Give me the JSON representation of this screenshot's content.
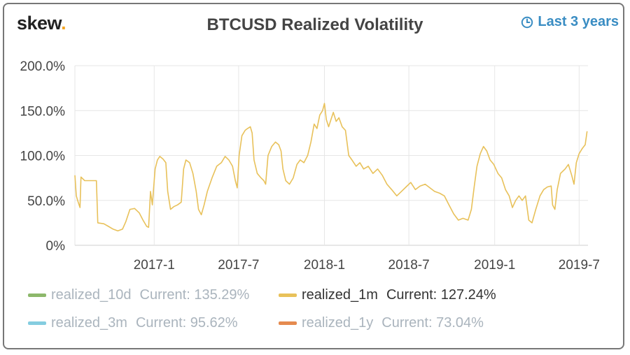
{
  "logo": {
    "text": "skew",
    "dot": "."
  },
  "header": {
    "title": "BTCUSD Realized Volatility",
    "range_label": "Last 3 years",
    "range_icon": "clock-icon"
  },
  "colors": {
    "accent": "#3a8dc3",
    "line": "#e8c15a",
    "grid": "#e6e6e6"
  },
  "legend": [
    {
      "name": "realized_10d",
      "current": "Current: 135.29%",
      "color": "#8db86b",
      "active": false
    },
    {
      "name": "realized_1m",
      "current": "Current: 127.24%",
      "color": "#e8c15a",
      "active": true
    },
    {
      "name": "realized_3m",
      "current": "Current: 95.62%",
      "color": "#84cde0",
      "active": false
    },
    {
      "name": "realized_1y",
      "current": "Current: 73.04%",
      "color": "#e58a4f",
      "active": false
    }
  ],
  "chart_data": {
    "type": "line",
    "title": "BTCUSD Realized Volatility",
    "ylim": [
      0,
      200
    ],
    "y_ticks": [
      0,
      50,
      100,
      150,
      200
    ],
    "y_tick_labels": [
      "0%",
      "50.0%",
      "100.0%",
      "150.0%",
      "200.0%"
    ],
    "x_tick_labels": [
      "2017-1",
      "2017-7",
      "2018-1",
      "2018-7",
      "2019-1",
      "2019-7"
    ],
    "x_tick_dates": [
      "2017-01-01",
      "2017-07-01",
      "2018-01-01",
      "2018-07-01",
      "2019-01-01",
      "2019-07-01"
    ],
    "xlim": [
      "2016-07-15",
      "2019-07-20"
    ],
    "grid": true,
    "legend_position": "bottom",
    "series": [
      {
        "name": "realized_1m",
        "points": [
          [
            "2016-07-15",
            78
          ],
          [
            "2016-07-18",
            55
          ],
          [
            "2016-07-22",
            48
          ],
          [
            "2016-07-26",
            42
          ],
          [
            "2016-07-28",
            76
          ],
          [
            "2016-08-05",
            72
          ],
          [
            "2016-08-20",
            72
          ],
          [
            "2016-08-30",
            72
          ],
          [
            "2016-09-02",
            25
          ],
          [
            "2016-09-15",
            24
          ],
          [
            "2016-09-25",
            21
          ],
          [
            "2016-10-05",
            18
          ],
          [
            "2016-10-15",
            16
          ],
          [
            "2016-10-25",
            18
          ],
          [
            "2016-11-01",
            26
          ],
          [
            "2016-11-10",
            40
          ],
          [
            "2016-11-20",
            41
          ],
          [
            "2016-11-30",
            36
          ],
          [
            "2016-12-08",
            28
          ],
          [
            "2016-12-16",
            21
          ],
          [
            "2016-12-20",
            20
          ],
          [
            "2016-12-24",
            60
          ],
          [
            "2016-12-28",
            45
          ],
          [
            "2017-01-03",
            85
          ],
          [
            "2017-01-08",
            95
          ],
          [
            "2017-01-13",
            99
          ],
          [
            "2017-01-20",
            96
          ],
          [
            "2017-01-26",
            92
          ],
          [
            "2017-01-30",
            60
          ],
          [
            "2017-02-05",
            40
          ],
          [
            "2017-02-12",
            43
          ],
          [
            "2017-02-20",
            45
          ],
          [
            "2017-02-28",
            48
          ],
          [
            "2017-03-05",
            85
          ],
          [
            "2017-03-10",
            95
          ],
          [
            "2017-03-18",
            92
          ],
          [
            "2017-03-25",
            80
          ],
          [
            "2017-04-01",
            60
          ],
          [
            "2017-04-06",
            40
          ],
          [
            "2017-04-12",
            34
          ],
          [
            "2017-04-18",
            45
          ],
          [
            "2017-04-25",
            60
          ],
          [
            "2017-05-05",
            75
          ],
          [
            "2017-05-15",
            88
          ],
          [
            "2017-05-25",
            92
          ],
          [
            "2017-06-02",
            99
          ],
          [
            "2017-06-10",
            95
          ],
          [
            "2017-06-18",
            88
          ],
          [
            "2017-06-24",
            72
          ],
          [
            "2017-06-28",
            64
          ],
          [
            "2017-07-02",
            100
          ],
          [
            "2017-07-08",
            122
          ],
          [
            "2017-07-15",
            128
          ],
          [
            "2017-07-20",
            130
          ],
          [
            "2017-07-26",
            132
          ],
          [
            "2017-07-30",
            125
          ],
          [
            "2017-08-03",
            95
          ],
          [
            "2017-08-10",
            80
          ],
          [
            "2017-08-18",
            75
          ],
          [
            "2017-08-24",
            72
          ],
          [
            "2017-08-28",
            68
          ],
          [
            "2017-09-02",
            100
          ],
          [
            "2017-09-10",
            110
          ],
          [
            "2017-09-18",
            115
          ],
          [
            "2017-09-25",
            112
          ],
          [
            "2017-09-30",
            105
          ],
          [
            "2017-10-04",
            85
          ],
          [
            "2017-10-10",
            72
          ],
          [
            "2017-10-18",
            68
          ],
          [
            "2017-10-26",
            75
          ],
          [
            "2017-11-03",
            90
          ],
          [
            "2017-11-10",
            95
          ],
          [
            "2017-11-18",
            92
          ],
          [
            "2017-11-26",
            100
          ],
          [
            "2017-12-03",
            115
          ],
          [
            "2017-12-10",
            135
          ],
          [
            "2017-12-16",
            130
          ],
          [
            "2017-12-22",
            145
          ],
          [
            "2017-12-28",
            150
          ],
          [
            "2018-01-01",
            158
          ],
          [
            "2018-01-05",
            140
          ],
          [
            "2018-01-10",
            132
          ],
          [
            "2018-01-15",
            140
          ],
          [
            "2018-01-20",
            148
          ],
          [
            "2018-01-26",
            138
          ],
          [
            "2018-02-01",
            142
          ],
          [
            "2018-02-08",
            132
          ],
          [
            "2018-02-15",
            128
          ],
          [
            "2018-02-22",
            100
          ],
          [
            "2018-03-01",
            95
          ],
          [
            "2018-03-10",
            88
          ],
          [
            "2018-03-18",
            92
          ],
          [
            "2018-03-26",
            85
          ],
          [
            "2018-04-05",
            88
          ],
          [
            "2018-04-15",
            80
          ],
          [
            "2018-04-25",
            85
          ],
          [
            "2018-05-05",
            78
          ],
          [
            "2018-05-15",
            68
          ],
          [
            "2018-05-25",
            62
          ],
          [
            "2018-06-05",
            55
          ],
          [
            "2018-06-15",
            60
          ],
          [
            "2018-06-25",
            65
          ],
          [
            "2018-07-05",
            70
          ],
          [
            "2018-07-15",
            62
          ],
          [
            "2018-07-25",
            66
          ],
          [
            "2018-08-05",
            68
          ],
          [
            "2018-08-15",
            64
          ],
          [
            "2018-08-25",
            60
          ],
          [
            "2018-09-05",
            58
          ],
          [
            "2018-09-15",
            55
          ],
          [
            "2018-09-25",
            45
          ],
          [
            "2018-10-05",
            35
          ],
          [
            "2018-10-15",
            28
          ],
          [
            "2018-10-25",
            30
          ],
          [
            "2018-11-05",
            28
          ],
          [
            "2018-11-12",
            40
          ],
          [
            "2018-11-18",
            65
          ],
          [
            "2018-11-24",
            88
          ],
          [
            "2018-12-01",
            102
          ],
          [
            "2018-12-08",
            110
          ],
          [
            "2018-12-15",
            105
          ],
          [
            "2018-12-22",
            95
          ],
          [
            "2018-12-30",
            90
          ],
          [
            "2019-01-08",
            80
          ],
          [
            "2019-01-16",
            75
          ],
          [
            "2019-01-24",
            62
          ],
          [
            "2019-02-01",
            55
          ],
          [
            "2019-02-08",
            42
          ],
          [
            "2019-02-15",
            50
          ],
          [
            "2019-02-22",
            55
          ],
          [
            "2019-03-01",
            50
          ],
          [
            "2019-03-08",
            55
          ],
          [
            "2019-03-15",
            28
          ],
          [
            "2019-03-22",
            25
          ],
          [
            "2019-03-30",
            40
          ],
          [
            "2019-04-08",
            55
          ],
          [
            "2019-04-16",
            62
          ],
          [
            "2019-04-24",
            65
          ],
          [
            "2019-05-02",
            66
          ],
          [
            "2019-05-05",
            45
          ],
          [
            "2019-05-10",
            40
          ],
          [
            "2019-05-15",
            62
          ],
          [
            "2019-05-22",
            80
          ],
          [
            "2019-06-01",
            85
          ],
          [
            "2019-06-08",
            90
          ],
          [
            "2019-06-15",
            78
          ],
          [
            "2019-06-20",
            68
          ],
          [
            "2019-06-25",
            92
          ],
          [
            "2019-07-01",
            102
          ],
          [
            "2019-07-08",
            108
          ],
          [
            "2019-07-14",
            112
          ],
          [
            "2019-07-18",
            127
          ]
        ]
      }
    ]
  }
}
